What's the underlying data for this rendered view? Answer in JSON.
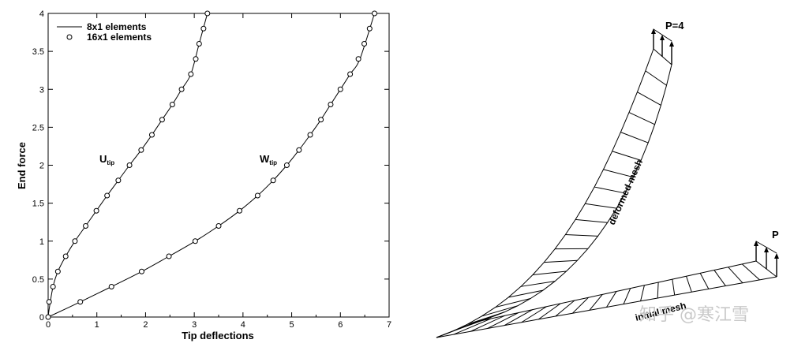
{
  "chart_data": [
    {
      "type": "line",
      "title": "",
      "xlabel": "Tip deflections",
      "ylabel": "End force",
      "xlim": [
        0,
        7
      ],
      "ylim": [
        0,
        4
      ],
      "xticks": [
        "0",
        "1",
        "2",
        "3",
        "4",
        "5",
        "6",
        "7"
      ],
      "yticks": [
        "0",
        "0.5",
        "1",
        "1.5",
        "2",
        "2.5",
        "3",
        "3.5",
        "4"
      ],
      "grid": false,
      "legend_position": "top-left",
      "legend": [
        {
          "label": "8x1 elements",
          "style": "line"
        },
        {
          "label": "16x1 elements",
          "style": "open-circle"
        }
      ],
      "series": [
        {
          "name": "U",
          "subscript": "tip",
          "line_8x1": {
            "x": [
              0,
              0.02,
              0.1,
              0.2,
              0.36,
              0.55,
              0.77,
              0.99,
              1.21,
              1.44,
              1.67,
              1.91,
              2.13,
              2.34,
              2.55,
              2.74,
              2.93,
              3.1,
              3.27
            ],
            "y": [
              0,
              0.1,
              0.4,
              0.6,
              0.8,
              1.0,
              1.2,
              1.4,
              1.6,
              1.8,
              2.0,
              2.2,
              2.4,
              2.6,
              2.8,
              3.0,
              3.2,
              3.6,
              4.0
            ]
          },
          "markers_16x1": {
            "x": [
              0.02,
              0.1,
              0.2,
              0.36,
              0.55,
              0.77,
              0.99,
              1.21,
              1.44,
              1.67,
              1.91,
              2.13,
              2.34,
              2.55,
              2.74,
              2.93,
              3.03,
              3.1,
              3.19,
              3.27
            ],
            "y": [
              0.2,
              0.4,
              0.6,
              0.8,
              1.0,
              1.2,
              1.4,
              1.6,
              1.8,
              2.0,
              2.2,
              2.4,
              2.6,
              2.8,
              3.0,
              3.2,
              3.4,
              3.6,
              3.8,
              4.0
            ]
          }
        },
        {
          "name": "W",
          "subscript": "tip",
          "line_8x1": {
            "x": [
              0,
              0.66,
              1.3,
              1.92,
              2.48,
              3.02,
              3.5,
              3.93,
              4.3,
              4.62,
              4.9,
              5.15,
              5.38,
              5.6,
              5.8,
              6.0,
              6.2,
              6.4,
              6.7
            ],
            "y": [
              0,
              0.2,
              0.4,
              0.6,
              0.8,
              1.0,
              1.2,
              1.4,
              1.6,
              1.8,
              2.0,
              2.2,
              2.4,
              2.6,
              2.8,
              3.0,
              3.2,
              3.4,
              4.0
            ]
          },
          "markers_16x1": {
            "x": [
              0.66,
              1.3,
              1.92,
              2.48,
              3.02,
              3.5,
              3.93,
              4.3,
              4.62,
              4.9,
              5.15,
              5.38,
              5.6,
              5.8,
              6.0,
              6.2,
              6.37,
              6.49,
              6.6,
              6.7
            ],
            "y": [
              0.2,
              0.4,
              0.6,
              0.8,
              1.0,
              1.2,
              1.4,
              1.6,
              1.8,
              2.0,
              2.2,
              2.4,
              2.6,
              2.8,
              3.0,
              3.2,
              3.4,
              3.6,
              3.8,
              4.0
            ]
          }
        }
      ]
    },
    {
      "type": "diagram",
      "labels": {
        "deformed": "deformed mesh",
        "initial": "initial mesh",
        "load_deformed": "P=4",
        "load_initial": "P"
      }
    }
  ],
  "watermark": "知乎 @寒江雪"
}
